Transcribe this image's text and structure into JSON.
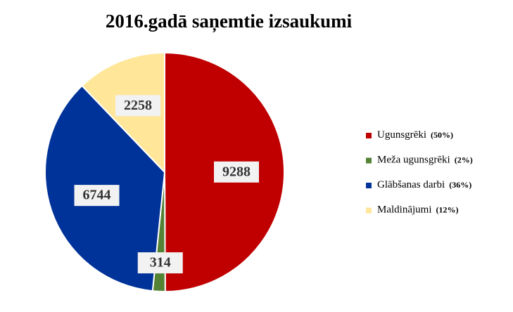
{
  "chart_data": {
    "type": "pie",
    "title": "2016.gadā saņemtie izsaukumi",
    "categories": [
      "Ugunsgrēki",
      "Meža ugunsgrēki",
      "Glābšanas darbi",
      "Maldinājumi"
    ],
    "values": [
      9288,
      314,
      6744,
      2258
    ],
    "percent_labels": [
      "(50%)",
      "(2%)",
      "(36%)",
      "(12%)"
    ],
    "colors": [
      "#c00000",
      "#548235",
      "#003399",
      "#ffe699"
    ],
    "legend": "right"
  }
}
